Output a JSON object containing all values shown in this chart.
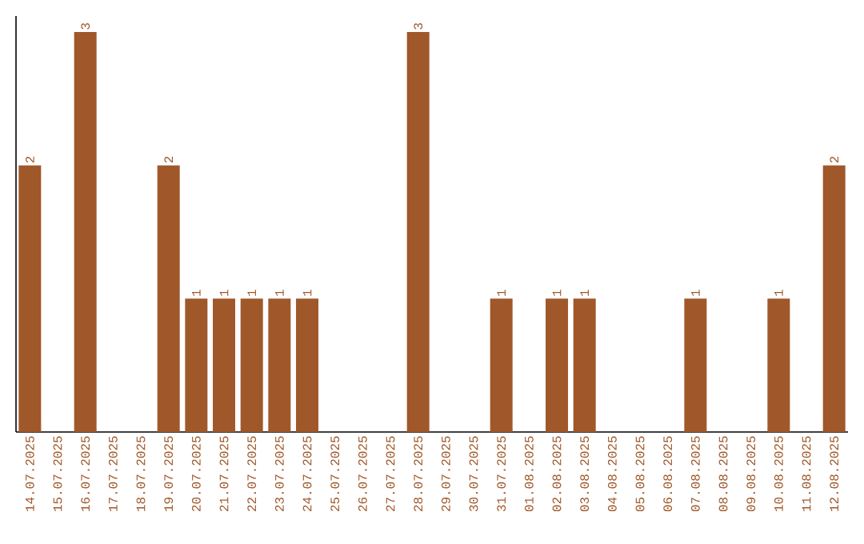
{
  "chart_data": {
    "type": "bar",
    "categories": [
      "14.07.2025",
      "15.07.2025",
      "16.07.2025",
      "17.07.2025",
      "18.07.2025",
      "19.07.2025",
      "20.07.2025",
      "21.07.2025",
      "22.07.2025",
      "23.07.2025",
      "24.07.2025",
      "25.07.2025",
      "26.07.2025",
      "27.07.2025",
      "28.07.2025",
      "29.07.2025",
      "30.07.2025",
      "31.07.2025",
      "01.08.2025",
      "02.08.2025",
      "03.08.2025",
      "04.08.2025",
      "05.08.2025",
      "06.08.2025",
      "07.08.2025",
      "08.08.2025",
      "09.08.2025",
      "10.08.2025",
      "11.08.2025",
      "12.08.2025"
    ],
    "values": [
      2,
      0,
      3,
      0,
      0,
      2,
      1,
      1,
      1,
      1,
      1,
      0,
      0,
      0,
      3,
      0,
      0,
      1,
      0,
      1,
      1,
      0,
      0,
      0,
      1,
      0,
      0,
      1,
      0,
      2
    ],
    "value_labels": [
      "2",
      null,
      "3",
      null,
      null,
      "2",
      "1",
      "1",
      "1",
      "1",
      "1",
      null,
      null,
      null,
      "3",
      null,
      null,
      "1",
      null,
      "1",
      "1",
      null,
      null,
      null,
      "1",
      null,
      null,
      "1",
      null,
      "2"
    ],
    "color": "#a0582a",
    "tick_labels": "x"
  }
}
